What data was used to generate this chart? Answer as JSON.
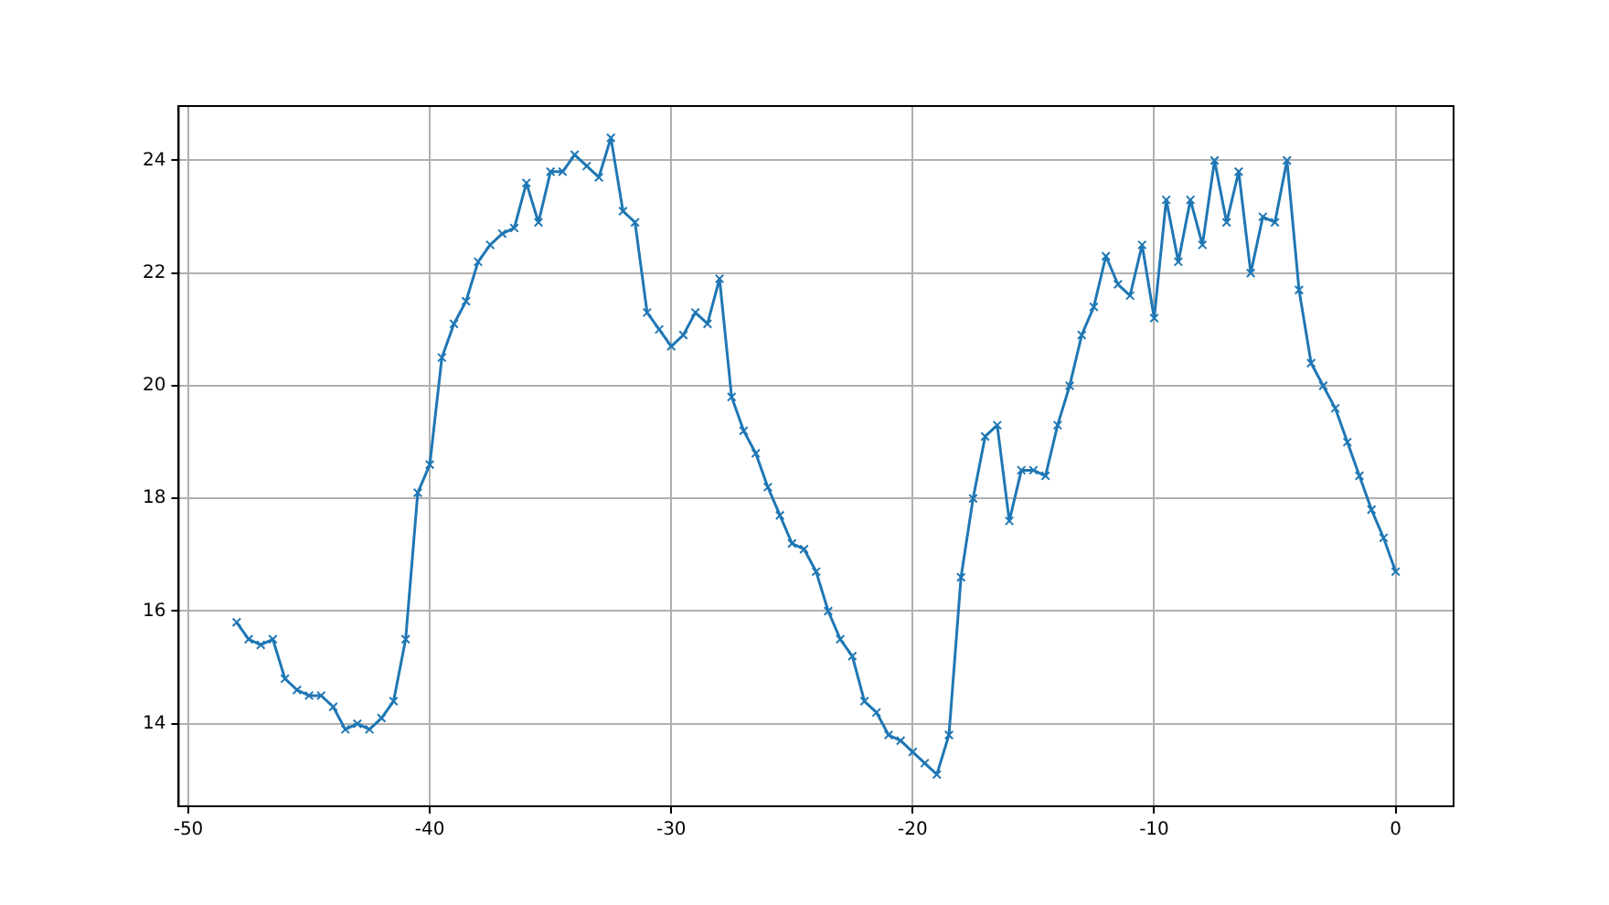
{
  "chart_data": {
    "type": "line",
    "x": [
      -48,
      -47.5,
      -47,
      -46.5,
      -46,
      -45.5,
      -45,
      -44.5,
      -44,
      -43.5,
      -43,
      -42.5,
      -42,
      -41.5,
      -41,
      -40.5,
      -40,
      -39.5,
      -39,
      -38.5,
      -38,
      -37.5,
      -37,
      -36.5,
      -36,
      -35.5,
      -35,
      -34.5,
      -34,
      -33.5,
      -33,
      -32.5,
      -32,
      -31.5,
      -31,
      -30.5,
      -30,
      -29.5,
      -29,
      -28.5,
      -28,
      -27.5,
      -27,
      -26.5,
      -26,
      -25.5,
      -25,
      -24.5,
      -24,
      -23.5,
      -23,
      -22.5,
      -22,
      -21.5,
      -21,
      -20.5,
      -20,
      -19.5,
      -19,
      -18.5,
      -18,
      -17.5,
      -17,
      -16.5,
      -16,
      -15.5,
      -15,
      -14.5,
      -14,
      -13.5,
      -13,
      -12.5,
      -12,
      -11.5,
      -11,
      -10.5,
      -10,
      -9.5,
      -9,
      -8.5,
      -8,
      -7.5,
      -7,
      -6.5,
      -6,
      -5.5,
      -5,
      -4.5,
      -4,
      -3.5,
      -3,
      -2.5,
      -2,
      -1.5,
      -1,
      -0.5,
      0
    ],
    "series": [
      {
        "color": "#1f77b4",
        "values": [
          15.8,
          15.5,
          15.4,
          15.5,
          14.8,
          14.6,
          14.5,
          14.5,
          14.3,
          13.9,
          14.0,
          13.9,
          14.1,
          14.4,
          15.5,
          18.1,
          18.6,
          20.5,
          21.1,
          21.5,
          22.2,
          22.5,
          22.7,
          22.8,
          23.6,
          22.9,
          23.8,
          23.8,
          24.1,
          23.9,
          23.7,
          24.4,
          23.1,
          22.9,
          21.3,
          21.0,
          20.7,
          20.9,
          21.3,
          21.1,
          21.9,
          19.8,
          19.2,
          18.8,
          18.2,
          17.7,
          17.2,
          17.1,
          16.7,
          16.0,
          15.5,
          15.2,
          14.4,
          14.2,
          13.8,
          13.7,
          13.5,
          13.3,
          13.1,
          13.8,
          16.6,
          18.0,
          19.1,
          19.3,
          17.6,
          18.5,
          18.5,
          18.4,
          19.3,
          20.0,
          20.9,
          21.4,
          22.3,
          21.8,
          21.6,
          22.5,
          21.2,
          23.3,
          22.2,
          23.3,
          22.5,
          24.0,
          22.9,
          23.8,
          22.0,
          23.0,
          22.9,
          24.0,
          21.7,
          20.4,
          20.0,
          19.6,
          19.0,
          18.4,
          17.8,
          17.3,
          16.7
        ]
      }
    ],
    "xlim": [
      -50.4,
      2.4
    ],
    "xticks": [
      -50,
      -40,
      -30,
      -20,
      -10,
      0
    ],
    "ylim": [
      12.535,
      24.965
    ],
    "yticks": [
      14,
      16,
      18,
      20,
      22,
      24
    ],
    "grid": true,
    "marker": "cross",
    "line_style": "solid"
  }
}
